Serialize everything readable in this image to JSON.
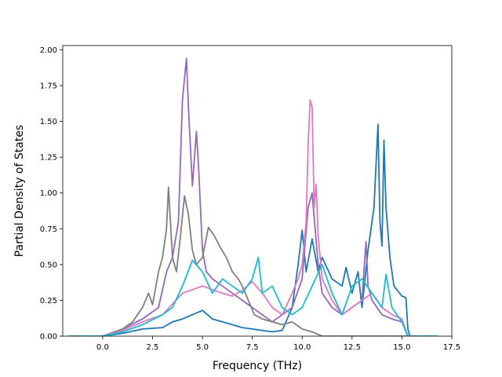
{
  "chart_data": {
    "type": "line",
    "title": "",
    "xlabel": "Frequency (THz)",
    "ylabel": "Partial Density of States",
    "xlim": [
      -2.0,
      17.5
    ],
    "ylim": [
      0.0,
      2.03
    ],
    "xticks": [
      0.0,
      2.5,
      5.0,
      7.5,
      10.0,
      12.5,
      15.0,
      17.5
    ],
    "xtick_labels": [
      "0.0",
      "2.5",
      "5.0",
      "7.5",
      "10.0",
      "12.5",
      "15.0",
      "17.5"
    ],
    "yticks": [
      0.0,
      0.25,
      0.5,
      0.75,
      1.0,
      1.25,
      1.5,
      1.75,
      2.0
    ],
    "ytick_labels": [
      "0.00",
      "0.25",
      "0.50",
      "0.75",
      "1.00",
      "1.25",
      "1.50",
      "1.75",
      "2.00"
    ],
    "grid": false,
    "legend": "none",
    "series": [
      {
        "color": "#1f77b4",
        "x": [
          -1.7,
          0.0,
          1.0,
          2.0,
          3.0,
          3.5,
          4.0,
          4.5,
          5.0,
          5.5,
          6.0,
          6.5,
          7.0,
          7.5,
          8.0,
          8.5,
          9.0,
          9.5,
          9.8,
          10.0,
          10.2,
          10.5,
          10.8,
          11.0,
          11.5,
          12.0,
          12.2,
          12.5,
          12.8,
          13.0,
          13.3,
          13.6,
          13.8,
          13.9,
          14.0,
          14.1,
          14.2,
          14.4,
          14.6,
          15.0,
          15.2,
          15.3,
          15.4,
          16.8
        ],
        "y": [
          0.0,
          0.0,
          0.02,
          0.05,
          0.06,
          0.1,
          0.12,
          0.15,
          0.18,
          0.12,
          0.1,
          0.08,
          0.06,
          0.05,
          0.04,
          0.03,
          0.04,
          0.2,
          0.5,
          0.74,
          0.45,
          0.68,
          0.45,
          0.55,
          0.4,
          0.35,
          0.48,
          0.3,
          0.45,
          0.2,
          0.6,
          0.9,
          1.48,
          0.8,
          0.63,
          1.37,
          0.9,
          0.55,
          0.35,
          0.28,
          0.27,
          0.05,
          0.0,
          0.0
        ]
      },
      {
        "color": "#9467bd",
        "x": [
          -1.7,
          0.0,
          1.0,
          2.0,
          2.8,
          3.2,
          3.5,
          3.8,
          4.0,
          4.1,
          4.2,
          4.3,
          4.5,
          4.7,
          4.8,
          5.0,
          5.2,
          5.5,
          6.0,
          6.5,
          7.0,
          7.5,
          8.0,
          8.5,
          9.0,
          9.5,
          10.0,
          10.3,
          10.5,
          10.8,
          11.0,
          11.5,
          12.0,
          12.5,
          13.0,
          13.2,
          13.3,
          13.5,
          14.0,
          14.5,
          15.0,
          15.3,
          16.8
        ],
        "y": [
          0.0,
          0.0,
          0.05,
          0.12,
          0.2,
          0.45,
          0.55,
          0.8,
          1.65,
          1.8,
          1.94,
          1.6,
          1.05,
          1.43,
          1.2,
          0.6,
          0.45,
          0.4,
          0.35,
          0.3,
          0.25,
          0.2,
          0.15,
          0.1,
          0.15,
          0.2,
          0.4,
          0.9,
          1.0,
          0.5,
          0.3,
          0.2,
          0.15,
          0.2,
          0.25,
          0.66,
          0.35,
          0.25,
          0.15,
          0.12,
          0.1,
          0.0,
          0.0
        ]
      },
      {
        "color": "#7f7f7f",
        "x": [
          -1.7,
          0.0,
          1.0,
          1.5,
          2.0,
          2.3,
          2.5,
          2.8,
          3.0,
          3.2,
          3.3,
          3.5,
          3.7,
          3.9,
          4.1,
          4.3,
          4.5,
          4.7,
          5.0,
          5.3,
          5.6,
          5.9,
          6.2,
          6.5,
          6.8,
          7.0,
          7.3,
          7.6,
          8.0,
          8.5,
          9.0,
          9.5,
          10.0,
          10.5,
          11.0,
          15.3,
          16.8
        ],
        "y": [
          0.0,
          0.0,
          0.05,
          0.1,
          0.2,
          0.3,
          0.22,
          0.45,
          0.55,
          0.75,
          1.04,
          0.55,
          0.45,
          0.7,
          0.98,
          0.85,
          0.6,
          0.5,
          0.55,
          0.76,
          0.7,
          0.62,
          0.55,
          0.45,
          0.4,
          0.35,
          0.25,
          0.15,
          0.12,
          0.1,
          0.08,
          0.1,
          0.05,
          0.03,
          0.0,
          0.0,
          0.0
        ]
      },
      {
        "color": "#e377c2",
        "x": [
          -1.7,
          0.0,
          1.0,
          2.0,
          3.0,
          4.0,
          5.0,
          6.0,
          6.5,
          7.0,
          7.5,
          8.0,
          8.5,
          9.0,
          9.5,
          9.8,
          10.0,
          10.2,
          10.3,
          10.4,
          10.5,
          10.6,
          10.7,
          10.8,
          11.0,
          11.5,
          12.0,
          12.5,
          13.0,
          13.5,
          14.0,
          14.5,
          15.0,
          15.3,
          16.8
        ],
        "y": [
          0.0,
          0.0,
          0.04,
          0.1,
          0.15,
          0.3,
          0.35,
          0.3,
          0.28,
          0.32,
          0.38,
          0.3,
          0.2,
          0.15,
          0.3,
          0.4,
          0.5,
          0.8,
          1.35,
          1.65,
          1.6,
          0.9,
          1.06,
          0.7,
          0.4,
          0.25,
          0.15,
          0.2,
          0.25,
          0.3,
          0.2,
          0.15,
          0.12,
          0.0,
          0.0
        ]
      },
      {
        "color": "#17becf",
        "x": [
          -1.7,
          0.0,
          1.0,
          2.0,
          3.0,
          3.5,
          4.0,
          4.5,
          5.0,
          5.5,
          6.0,
          6.5,
          7.0,
          7.5,
          7.8,
          8.0,
          8.5,
          9.0,
          9.5,
          10.0,
          10.5,
          11.0,
          11.5,
          12.0,
          12.5,
          13.0,
          13.5,
          14.0,
          14.2,
          14.5,
          15.0,
          15.3,
          16.8
        ],
        "y": [
          0.0,
          0.0,
          0.03,
          0.08,
          0.15,
          0.2,
          0.35,
          0.53,
          0.45,
          0.3,
          0.4,
          0.35,
          0.3,
          0.4,
          0.55,
          0.3,
          0.35,
          0.2,
          0.15,
          0.2,
          0.35,
          0.5,
          0.3,
          0.15,
          0.35,
          0.4,
          0.3,
          0.2,
          0.43,
          0.2,
          0.1,
          0.0,
          0.0
        ]
      }
    ]
  }
}
